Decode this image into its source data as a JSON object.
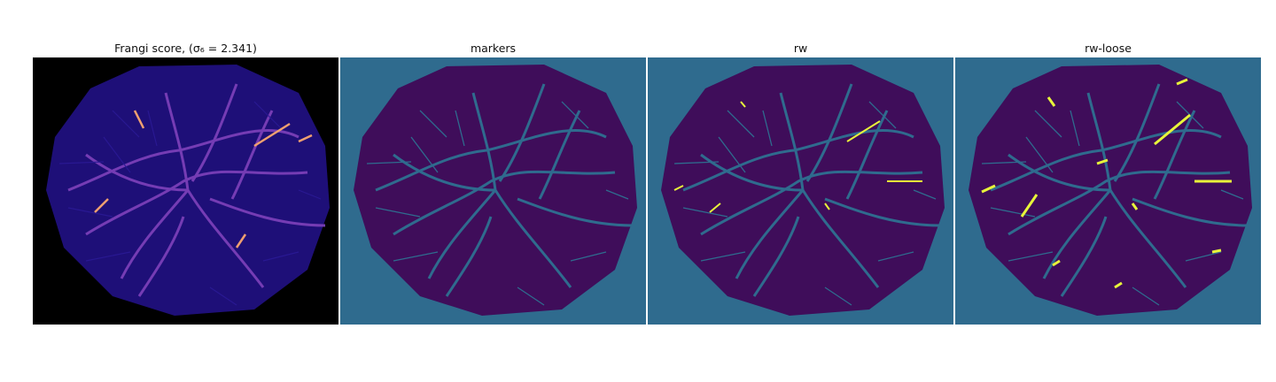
{
  "figure": {
    "panels": [
      {
        "title": "Frangi score, (σ₆ = 2.341)",
        "colormap": "magma-like",
        "background": "#000000"
      },
      {
        "title": "markers",
        "colormap": "viridis-like",
        "background": "#2f6b8e"
      },
      {
        "title": "rw",
        "colormap": "viridis-like",
        "background": "#2f6b8e"
      },
      {
        "title": "rw-loose",
        "colormap": "viridis-like",
        "background": "#2f6b8e"
      }
    ]
  },
  "colors": {
    "frangi_bg": "#000000",
    "frangi_tissue": "#1e0f78",
    "frangi_low": "#7a3fb8",
    "frangi_high": "#f0a070",
    "seg_bg": "#2f6b8e",
    "seg_tissue": "#3f0d5a",
    "seg_vessel": "#2f6b8e",
    "seg_highlight": "#e8f53a"
  }
}
